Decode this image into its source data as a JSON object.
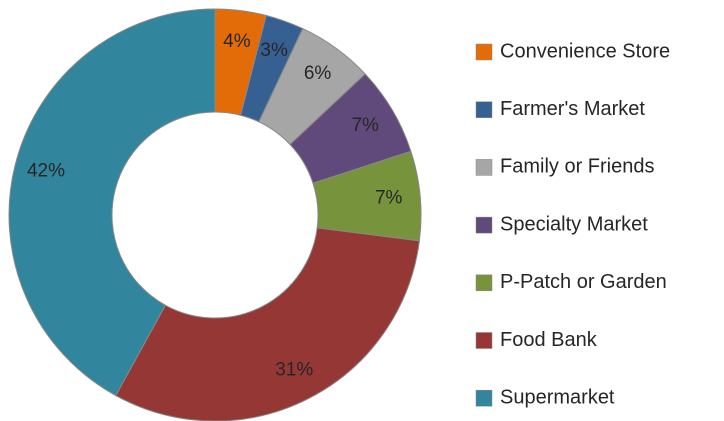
{
  "chart_data": {
    "type": "donut",
    "categories": [
      "Convenience Store",
      "Farmer's Market",
      "Family or Friends",
      "Specialty Market",
      "P-Patch or Garden",
      "Food Bank",
      "Supermarket"
    ],
    "values": [
      4,
      3,
      6,
      7,
      7,
      31,
      42
    ],
    "value_labels": [
      "4%",
      "3%",
      "6%",
      "7%",
      "7%",
      "31%",
      "42%"
    ],
    "colors": [
      "#e36c09",
      "#376092",
      "#a6a6a6",
      "#604a7b",
      "#77933c",
      "#953735",
      "#31859c"
    ],
    "legend": "right"
  }
}
